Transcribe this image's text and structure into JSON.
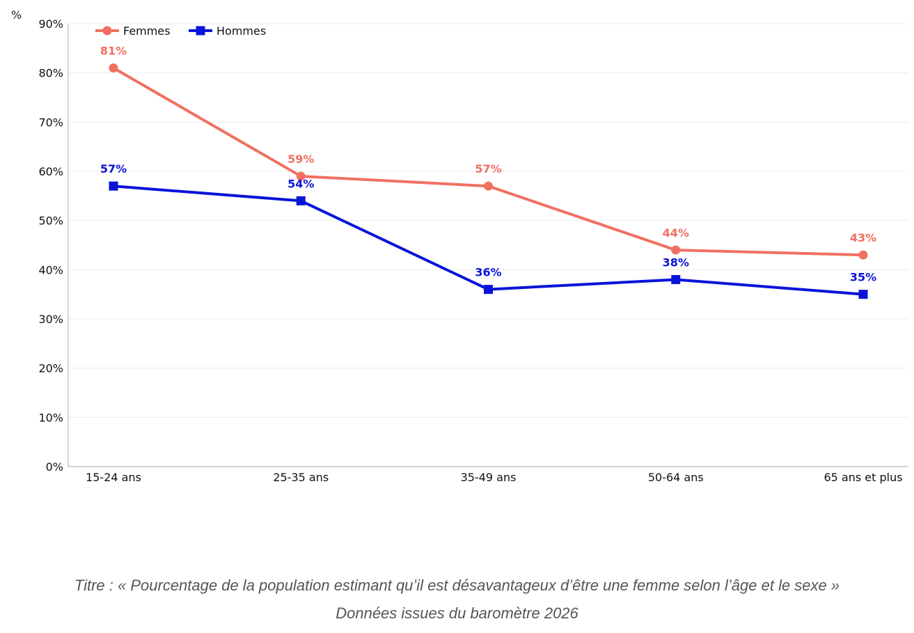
{
  "chart_data": {
    "type": "line",
    "unit_label": "%",
    "categories": [
      "15-24 ans",
      "25-35 ans",
      "35-49 ans",
      "50-64 ans",
      "65 ans et plus"
    ],
    "y_ticks": [
      "0%",
      "10%",
      "20%",
      "30%",
      "40%",
      "50%",
      "60%",
      "70%",
      "80%",
      "90%"
    ],
    "ylim": [
      0,
      90
    ],
    "grid": "horizontal",
    "legend_position": "top-left",
    "series": [
      {
        "name": "Femmes",
        "color": "#F07060",
        "marker": "circle",
        "values": [
          81,
          59,
          57,
          44,
          43
        ],
        "labels": [
          "81%",
          "59%",
          "57%",
          "44%",
          "43%"
        ]
      },
      {
        "name": "Hommes",
        "color": "#0A14D8",
        "marker": "square",
        "values": [
          57,
          54,
          36,
          38,
          35
        ],
        "labels": [
          "57%",
          "54%",
          "36%",
          "38%",
          "35%"
        ]
      }
    ]
  },
  "caption": {
    "title": "Titre : « Pourcentage de la population estimant qu’il est désavantageux d’être une femme selon l’âge et le sexe »",
    "source": "Données issues du baromètre 2026"
  }
}
